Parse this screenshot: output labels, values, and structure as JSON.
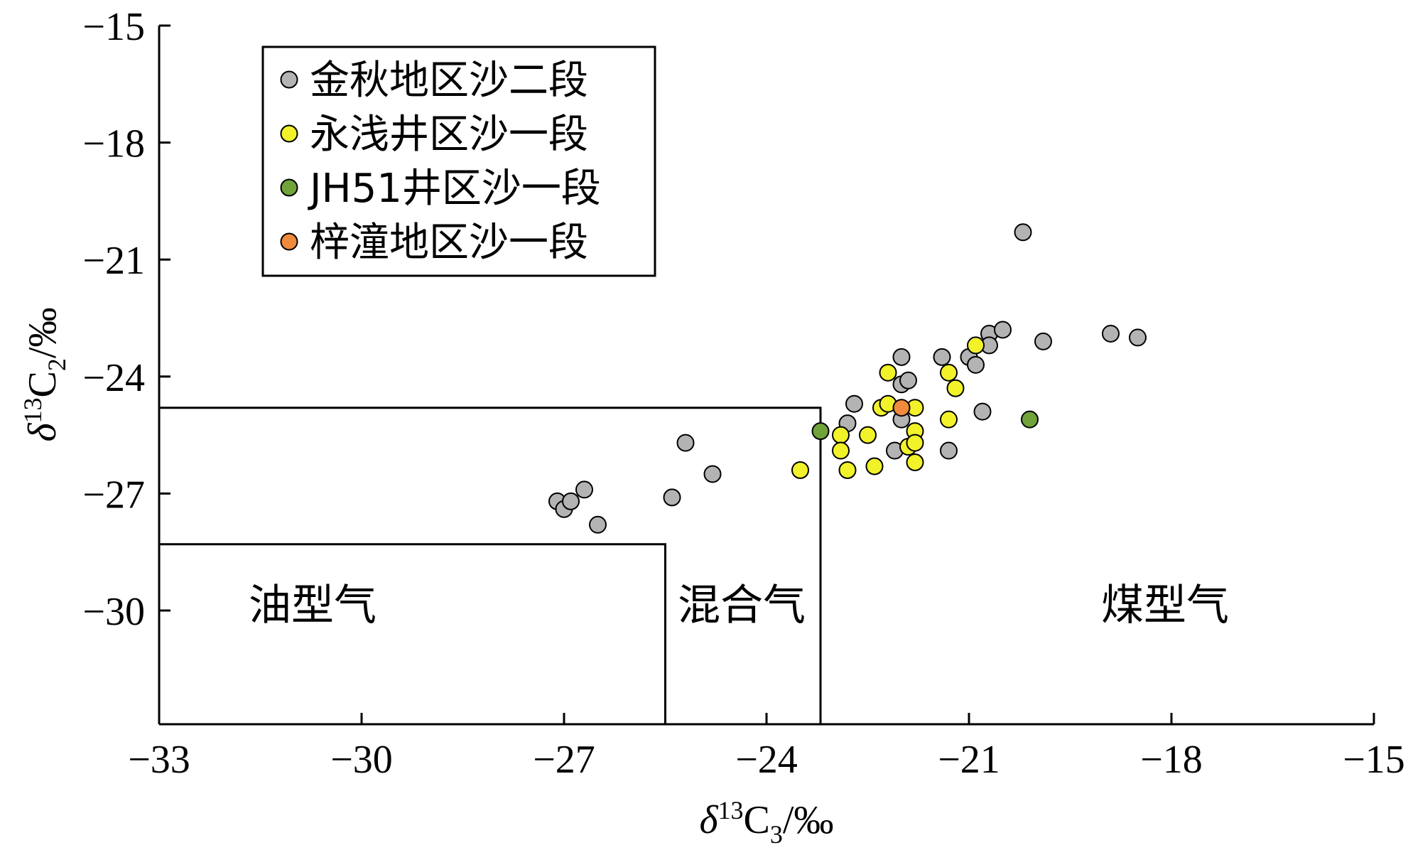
{
  "chart_data": {
    "type": "scatter",
    "xlabel": "δ13C3/‰",
    "ylabel": "δ13C2/‰",
    "xlim": [
      -33,
      -15
    ],
    "ylim": [
      -33,
      -15
    ],
    "x_ticks": [
      "−33",
      "−30",
      "−27",
      "−24",
      "−21",
      "−18",
      "−15"
    ],
    "y_ticks": [
      "−15",
      "−18",
      "−21",
      "−24",
      "−27",
      "−30"
    ],
    "x_tick_values": [
      -33,
      -30,
      -27,
      -24,
      -21,
      -18,
      -15
    ],
    "y_tick_values": [
      -15,
      -18,
      -21,
      -24,
      -27,
      -30
    ],
    "legend_position": "top-left",
    "regions": [
      {
        "label": "油型气",
        "x_max": -25.5,
        "y_max": -28.3
      },
      {
        "label": "混合气",
        "x_max": -23.2,
        "y_max": -24.8
      },
      {
        "label": "煤型气"
      }
    ],
    "series": [
      {
        "name": "金秋地区沙二段",
        "color": "#b3b3b3",
        "points": [
          [
            -27.1,
            -27.2
          ],
          [
            -27.0,
            -27.4
          ],
          [
            -26.9,
            -27.2
          ],
          [
            -26.7,
            -26.9
          ],
          [
            -26.5,
            -27.8
          ],
          [
            -25.4,
            -27.1
          ],
          [
            -25.2,
            -25.7
          ],
          [
            -24.8,
            -26.5
          ],
          [
            -22.7,
            -24.7
          ],
          [
            -22.8,
            -25.2
          ],
          [
            -22.0,
            -25.1
          ],
          [
            -22.0,
            -24.2
          ],
          [
            -22.0,
            -23.5
          ],
          [
            -21.9,
            -24.1
          ],
          [
            -22.1,
            -25.9
          ],
          [
            -21.4,
            -23.5
          ],
          [
            -21.0,
            -23.5
          ],
          [
            -20.9,
            -23.7
          ],
          [
            -21.3,
            -25.9
          ],
          [
            -20.8,
            -24.9
          ],
          [
            -20.7,
            -22.9
          ],
          [
            -20.7,
            -23.2
          ],
          [
            -20.5,
            -22.8
          ],
          [
            -20.2,
            -20.3
          ],
          [
            -19.9,
            -23.1
          ],
          [
            -18.9,
            -22.9
          ],
          [
            -18.5,
            -23.0
          ]
        ]
      },
      {
        "name": "永浅井区沙一段",
        "color": "#f2f22a",
        "points": [
          [
            -23.5,
            -26.4
          ],
          [
            -22.9,
            -25.5
          ],
          [
            -22.9,
            -25.9
          ],
          [
            -22.8,
            -26.4
          ],
          [
            -22.5,
            -25.5
          ],
          [
            -22.4,
            -26.3
          ],
          [
            -22.3,
            -24.8
          ],
          [
            -22.2,
            -24.7
          ],
          [
            -22.2,
            -23.9
          ],
          [
            -21.8,
            -24.8
          ],
          [
            -21.8,
            -25.4
          ],
          [
            -21.8,
            -26.2
          ],
          [
            -21.9,
            -25.8
          ],
          [
            -21.8,
            -25.7
          ],
          [
            -21.3,
            -23.9
          ],
          [
            -21.3,
            -25.1
          ],
          [
            -21.2,
            -24.3
          ],
          [
            -20.9,
            -23.2
          ]
        ]
      },
      {
        "name": "JH51井区沙一段",
        "color": "#70a33a",
        "points": [
          [
            -23.2,
            -25.4
          ],
          [
            -20.1,
            -25.1
          ]
        ]
      },
      {
        "name": "梓潼地区沙一段",
        "color": "#f08a3c",
        "points": [
          [
            -22.0,
            -24.8
          ]
        ]
      }
    ]
  }
}
